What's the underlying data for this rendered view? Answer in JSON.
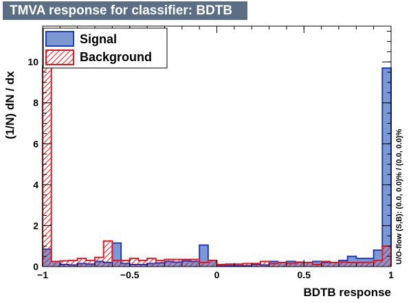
{
  "chart_data": {
    "type": "histogram",
    "title": "TMVA response for classifier: BDTB",
    "xlabel": "BDTB response",
    "ylabel": "(1/N) dN / dx",
    "xlim": [
      -1,
      1
    ],
    "ylim": [
      0,
      11.75
    ],
    "xticks": [
      "−1",
      "−0.5",
      "0",
      "0.5",
      "1"
    ],
    "yticks": [
      "0",
      "2",
      "4",
      "6",
      "8",
      "10"
    ],
    "overflow_note": "U/O-flow (S,B): (0.0, 0.0)% / (0.0, 0.0)%",
    "bins": 40,
    "legend": {
      "signal_label": "Signal",
      "background_label": "Background",
      "position": "top-left"
    },
    "series": [
      {
        "name": "Signal",
        "color": "#1c39c8",
        "fill": "#7d99d1",
        "values": [
          0.85,
          0.25,
          0.1,
          0.08,
          0.15,
          0.12,
          0.25,
          0.2,
          1.15,
          0.15,
          0.1,
          0.1,
          0.15,
          0.18,
          0.25,
          0.22,
          0.28,
          0.25,
          1.05,
          0.3,
          0.05,
          0.05,
          0.05,
          0.05,
          0.1,
          0.08,
          0.25,
          0.2,
          0.25,
          0.22,
          0.2,
          0.25,
          0.2,
          0.2,
          0.3,
          0.5,
          0.4,
          0.4,
          0.8,
          9.7
        ]
      },
      {
        "name": "Background",
        "color": "#e8141e",
        "values": [
          9.8,
          0.25,
          0.28,
          0.3,
          0.4,
          0.3,
          0.45,
          1.25,
          0.3,
          0.3,
          0.4,
          0.3,
          0.4,
          0.3,
          0.35,
          0.35,
          0.35,
          0.35,
          0.2,
          0.3,
          0.1,
          0.12,
          0.12,
          0.15,
          0.15,
          0.25,
          0.15,
          0.2,
          0.15,
          0.2,
          0.2,
          0.1,
          0.25,
          0.2,
          0.22,
          0.2,
          0.2,
          0.2,
          0.3,
          1.0
        ]
      }
    ]
  }
}
